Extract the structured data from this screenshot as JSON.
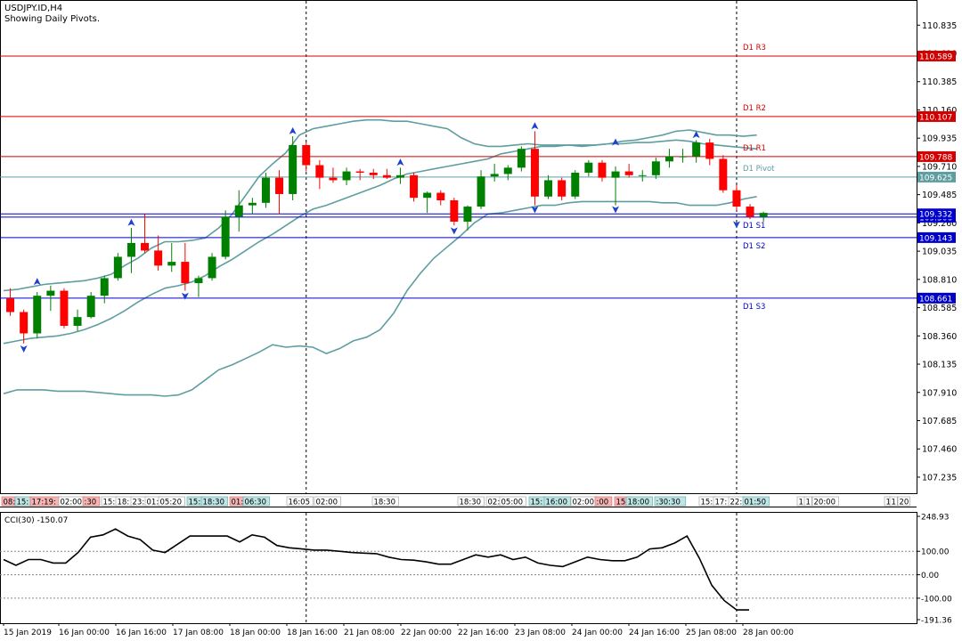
{
  "window": {
    "symbol_line": "USDJPY.ID,H4",
    "subtitle": "Showing Daily Pivots."
  },
  "colors": {
    "background": "#ffffff",
    "frame": "#000000",
    "bull_candle": "#008000",
    "bear_candle": "#ff0000",
    "bollinger": "#5f9ea0",
    "resistance": "#d40000",
    "support": "#0000cc",
    "pivot": "#5f9ea0",
    "fractal": "#1f3fd0",
    "cci_line": "#000000"
  },
  "chart_data": [
    {
      "type": "candlestick",
      "name": "USDJPY.ID,H4",
      "ylim": [
        107.1,
        111.0
      ],
      "y_ticks": [
        "110.835",
        "110.610",
        "110.385",
        "110.160",
        "109.935",
        "109.710",
        "109.485",
        "109.260",
        "109.035",
        "108.810",
        "108.585",
        "108.360",
        "108.135",
        "107.910",
        "107.685",
        "107.460",
        "107.235"
      ],
      "x_labels": [
        "15 Jan 2019",
        "16 Jan 00:00",
        "16 Jan 16:00",
        "17 Jan 08:00",
        "18 Jan 00:00",
        "18 Jan 16:00",
        "21 Jan 08:00",
        "22 Jan 00:00",
        "22 Jan 16:00",
        "23 Jan 08:00",
        "24 Jan 00:00",
        "24 Jan 16:00",
        "25 Jan 08:00",
        "28 Jan 00:00"
      ],
      "candles": [
        {
          "o": 108.66,
          "h": 108.74,
          "l": 108.52,
          "c": 108.55
        },
        {
          "o": 108.55,
          "h": 108.57,
          "l": 108.3,
          "c": 108.38
        },
        {
          "o": 108.38,
          "h": 108.71,
          "l": 108.34,
          "c": 108.68
        },
        {
          "o": 108.68,
          "h": 108.76,
          "l": 108.56,
          "c": 108.72
        },
        {
          "o": 108.72,
          "h": 108.74,
          "l": 108.42,
          "c": 108.44
        },
        {
          "o": 108.44,
          "h": 108.57,
          "l": 108.4,
          "c": 108.51
        },
        {
          "o": 108.51,
          "h": 108.71,
          "l": 108.5,
          "c": 108.68
        },
        {
          "o": 108.68,
          "h": 108.84,
          "l": 108.62,
          "c": 108.82
        },
        {
          "o": 108.82,
          "h": 109.02,
          "l": 108.8,
          "c": 108.99
        },
        {
          "o": 108.99,
          "h": 109.22,
          "l": 108.86,
          "c": 109.1
        },
        {
          "o": 109.1,
          "h": 109.33,
          "l": 109.02,
          "c": 109.04
        },
        {
          "o": 109.04,
          "h": 109.16,
          "l": 108.88,
          "c": 108.92
        },
        {
          "o": 108.92,
          "h": 109.1,
          "l": 108.87,
          "c": 108.95
        },
        {
          "o": 108.95,
          "h": 109.1,
          "l": 108.72,
          "c": 108.78
        },
        {
          "o": 108.78,
          "h": 108.84,
          "l": 108.67,
          "c": 108.82
        },
        {
          "o": 108.82,
          "h": 109.02,
          "l": 108.8,
          "c": 108.99
        },
        {
          "o": 108.99,
          "h": 109.36,
          "l": 108.97,
          "c": 109.31
        },
        {
          "o": 109.31,
          "h": 109.52,
          "l": 109.19,
          "c": 109.4
        },
        {
          "o": 109.4,
          "h": 109.46,
          "l": 109.33,
          "c": 109.42
        },
        {
          "o": 109.42,
          "h": 109.66,
          "l": 109.38,
          "c": 109.62
        },
        {
          "o": 109.62,
          "h": 109.68,
          "l": 109.33,
          "c": 109.49
        },
        {
          "o": 109.49,
          "h": 109.95,
          "l": 109.44,
          "c": 109.88
        },
        {
          "o": 109.88,
          "h": 109.9,
          "l": 109.67,
          "c": 109.72
        },
        {
          "o": 109.72,
          "h": 109.76,
          "l": 109.53,
          "c": 109.62
        },
        {
          "o": 109.62,
          "h": 109.7,
          "l": 109.58,
          "c": 109.6
        },
        {
          "o": 109.6,
          "h": 109.7,
          "l": 109.56,
          "c": 109.67
        },
        {
          "o": 109.67,
          "h": 109.69,
          "l": 109.6,
          "c": 109.66
        },
        {
          "o": 109.66,
          "h": 109.69,
          "l": 109.61,
          "c": 109.64
        },
        {
          "o": 109.64,
          "h": 109.69,
          "l": 109.61,
          "c": 109.62
        },
        {
          "o": 109.62,
          "h": 109.7,
          "l": 109.57,
          "c": 109.64
        },
        {
          "o": 109.64,
          "h": 109.66,
          "l": 109.43,
          "c": 109.46
        },
        {
          "o": 109.46,
          "h": 109.51,
          "l": 109.34,
          "c": 109.5
        },
        {
          "o": 109.5,
          "h": 109.52,
          "l": 109.4,
          "c": 109.44
        },
        {
          "o": 109.44,
          "h": 109.46,
          "l": 109.24,
          "c": 109.27
        },
        {
          "o": 109.27,
          "h": 109.4,
          "l": 109.2,
          "c": 109.39
        },
        {
          "o": 109.39,
          "h": 109.68,
          "l": 109.37,
          "c": 109.63
        },
        {
          "o": 109.63,
          "h": 109.73,
          "l": 109.59,
          "c": 109.65
        },
        {
          "o": 109.65,
          "h": 109.72,
          "l": 109.6,
          "c": 109.7
        },
        {
          "o": 109.7,
          "h": 109.87,
          "l": 109.67,
          "c": 109.85
        },
        {
          "o": 109.85,
          "h": 109.99,
          "l": 109.4,
          "c": 109.47
        },
        {
          "o": 109.47,
          "h": 109.64,
          "l": 109.45,
          "c": 109.6
        },
        {
          "o": 109.6,
          "h": 109.62,
          "l": 109.44,
          "c": 109.47
        },
        {
          "o": 109.47,
          "h": 109.68,
          "l": 109.45,
          "c": 109.66
        },
        {
          "o": 109.66,
          "h": 109.76,
          "l": 109.63,
          "c": 109.74
        },
        {
          "o": 109.74,
          "h": 109.76,
          "l": 109.59,
          "c": 109.62
        },
        {
          "o": 109.62,
          "h": 109.71,
          "l": 109.4,
          "c": 109.67
        },
        {
          "o": 109.67,
          "h": 109.73,
          "l": 109.62,
          "c": 109.64
        },
        {
          "o": 109.64,
          "h": 109.68,
          "l": 109.59,
          "c": 109.64
        },
        {
          "o": 109.64,
          "h": 109.78,
          "l": 109.61,
          "c": 109.75
        },
        {
          "o": 109.75,
          "h": 109.85,
          "l": 109.7,
          "c": 109.79
        },
        {
          "o": 109.79,
          "h": 109.85,
          "l": 109.74,
          "c": 109.79
        },
        {
          "o": 109.79,
          "h": 109.92,
          "l": 109.74,
          "c": 109.9
        },
        {
          "o": 109.9,
          "h": 109.93,
          "l": 109.72,
          "c": 109.77
        },
        {
          "o": 109.77,
          "h": 109.8,
          "l": 109.5,
          "c": 109.52
        },
        {
          "o": 109.52,
          "h": 109.56,
          "l": 109.36,
          "c": 109.39
        },
        {
          "o": 109.39,
          "h": 109.41,
          "l": 109.29,
          "c": 109.31
        },
        {
          "o": 109.31,
          "h": 109.35,
          "l": 109.27,
          "c": 109.34
        }
      ],
      "bollinger": {
        "upper": [
          108.72,
          108.73,
          108.75,
          108.77,
          108.78,
          108.79,
          108.8,
          108.82,
          108.85,
          108.92,
          108.98,
          109.06,
          109.11,
          109.11,
          109.12,
          109.14,
          109.22,
          109.33,
          109.48,
          109.63,
          109.73,
          109.82,
          109.96,
          110.01,
          110.03,
          110.05,
          110.07,
          110.08,
          110.08,
          110.07,
          110.07,
          110.05,
          110.03,
          110.01,
          109.94,
          109.89,
          109.87,
          109.87,
          109.88,
          109.89,
          109.88,
          109.88,
          109.88,
          109.87,
          109.88,
          109.89,
          109.91,
          109.92,
          109.94,
          109.96,
          109.99,
          110.0,
          109.98,
          109.96,
          109.96,
          109.95,
          109.96
        ],
        "middle": [
          108.3,
          108.32,
          108.34,
          108.35,
          108.36,
          108.38,
          108.41,
          108.45,
          108.5,
          108.56,
          108.63,
          108.69,
          108.74,
          108.76,
          108.79,
          108.84,
          108.91,
          108.97,
          109.04,
          109.11,
          109.17,
          109.24,
          109.31,
          109.37,
          109.4,
          109.44,
          109.48,
          109.52,
          109.56,
          109.61,
          109.65,
          109.67,
          109.69,
          109.71,
          109.73,
          109.75,
          109.77,
          109.81,
          109.83,
          109.85,
          109.87,
          109.87,
          109.88,
          109.88,
          109.88,
          109.89,
          109.89,
          109.9,
          109.9,
          109.91,
          109.92,
          109.91,
          109.89,
          109.88,
          109.87,
          109.86,
          109.85
        ],
        "lower": [
          107.9,
          107.93,
          107.93,
          107.93,
          107.92,
          107.92,
          107.92,
          107.91,
          107.9,
          107.89,
          107.89,
          107.89,
          107.88,
          107.89,
          107.93,
          108.01,
          108.09,
          108.13,
          108.18,
          108.23,
          108.29,
          108.27,
          108.28,
          108.27,
          108.22,
          108.26,
          108.32,
          108.35,
          108.41,
          108.54,
          108.72,
          108.86,
          108.98,
          109.07,
          109.16,
          109.26,
          109.33,
          109.34,
          109.36,
          109.38,
          109.4,
          109.4,
          109.42,
          109.43,
          109.43,
          109.43,
          109.43,
          109.43,
          109.43,
          109.42,
          109.42,
          109.4,
          109.4,
          109.4,
          109.42,
          109.45,
          109.47
        ]
      },
      "fractals": [
        {
          "type": "up",
          "i": 2,
          "price": 108.78
        },
        {
          "type": "down",
          "i": 1,
          "price": 108.27
        },
        {
          "type": "up",
          "i": 9,
          "price": 109.25
        },
        {
          "type": "down",
          "i": 13,
          "price": 108.69
        },
        {
          "type": "up",
          "i": 21,
          "price": 109.98
        },
        {
          "type": "up",
          "i": 29,
          "price": 109.73
        },
        {
          "type": "down",
          "i": 33,
          "price": 109.21
        },
        {
          "type": "up",
          "i": 39,
          "price": 110.02
        },
        {
          "type": "down",
          "i": 39,
          "price": 109.38
        },
        {
          "type": "up",
          "i": 45,
          "price": 109.89
        },
        {
          "type": "down",
          "i": 45,
          "price": 109.38
        },
        {
          "type": "up",
          "i": 51,
          "price": 109.95
        },
        {
          "type": "down",
          "i": 54,
          "price": 109.26
        }
      ],
      "pivot_levels": [
        {
          "label": "D1 R3",
          "price": 110.589,
          "tag": "110.589",
          "kind": "resistance"
        },
        {
          "label": "D1 R2",
          "price": 110.107,
          "tag": "110.107",
          "kind": "resistance"
        },
        {
          "label": "D1 R1",
          "price": 109.788,
          "tag": "109.788",
          "kind": "resistance"
        },
        {
          "label": "D1 Pivot",
          "price": 109.625,
          "tag": "109.625",
          "kind": "pivot"
        },
        {
          "label": "D1 S1",
          "price": 109.306,
          "tag": "109.306",
          "kind": "support"
        },
        {
          "label": "D1 S2",
          "price": 109.143,
          "tag": "109.143",
          "kind": "support"
        },
        {
          "label": "D1 S3",
          "price": 108.661,
          "tag": "108.661",
          "kind": "support"
        }
      ],
      "current_price": 109.332,
      "current_price_tag": "109.332",
      "vlines": [
        22,
        54
      ]
    },
    {
      "type": "line",
      "name": "CCI(30)",
      "header": "CCI(30) -150.07",
      "ylim": [
        -191.36,
        248.93
      ],
      "y_ticks": [
        "248.93",
        "100.00",
        "0.00",
        "-100.00",
        "-191.36"
      ],
      "levels": [
        100,
        0,
        -100
      ],
      "values": [
        65,
        40,
        65,
        65,
        50,
        50,
        95,
        160,
        170,
        195,
        165,
        150,
        105,
        95,
        130,
        165,
        165,
        165,
        165,
        140,
        170,
        160,
        125,
        115,
        110,
        105,
        105,
        100,
        95,
        92,
        90,
        75,
        65,
        62,
        55,
        45,
        45,
        65,
        85,
        75,
        85,
        65,
        75,
        50,
        40,
        35,
        55,
        75,
        65,
        60,
        60,
        75,
        110,
        115,
        135,
        165,
        70,
        -45,
        -110,
        -150,
        -150
      ],
      "last_value": -150.07
    }
  ],
  "timeline": {
    "segments": [
      {
        "text": "08:",
        "type": "red"
      },
      {
        "text": "15:",
        "type": "teal"
      },
      {
        "text": "17:19:",
        "type": "red"
      },
      {
        "text": "02:00",
        "type": "plain"
      },
      {
        "text": ":30",
        "type": "red"
      },
      {
        "text": "15:",
        "type": "plain"
      },
      {
        "text": "18:",
        "type": "plain"
      },
      {
        "text": "23:",
        "type": "plain"
      },
      {
        "text": "01:",
        "type": "plain"
      },
      {
        "text": "05:20",
        "type": "plain"
      },
      {
        "text": "15:",
        "type": "teal"
      },
      {
        "text": "18:30",
        "type": "teal"
      },
      {
        "text": "01:",
        "type": "red"
      },
      {
        "text": "06:30",
        "type": "teal"
      },
      {
        "text": "16:05",
        "type": "plain"
      },
      {
        "text": "02:00",
        "type": "plain"
      },
      {
        "text": "18:30",
        "type": "plain"
      },
      {
        "text": "18:30",
        "type": "plain"
      },
      {
        "text": "02:",
        "type": "plain"
      },
      {
        "text": "05:00",
        "type": "plain"
      },
      {
        "text": "15:",
        "type": "teal"
      },
      {
        "text": "16:00",
        "type": "teal"
      },
      {
        "text": "02:00",
        "type": "plain"
      },
      {
        "text": ":00",
        "type": "red"
      },
      {
        "text": "15:",
        "type": "red"
      },
      {
        "text": "18:00",
        "type": "teal"
      },
      {
        "text": ":30:30",
        "type": "teal"
      },
      {
        "text": "15:",
        "type": "plain"
      },
      {
        "text": "17:",
        "type": "plain"
      },
      {
        "text": "22:",
        "type": "plain"
      },
      {
        "text": "01:50",
        "type": "teal"
      },
      {
        "text": "1",
        "type": "plain"
      },
      {
        "text": "1",
        "type": "plain"
      },
      {
        "text": "20:00",
        "type": "plain"
      },
      {
        "text": "1",
        "type": "plain"
      },
      {
        "text": "1",
        "type": "plain"
      },
      {
        "text": "20",
        "type": "plain"
      }
    ]
  }
}
